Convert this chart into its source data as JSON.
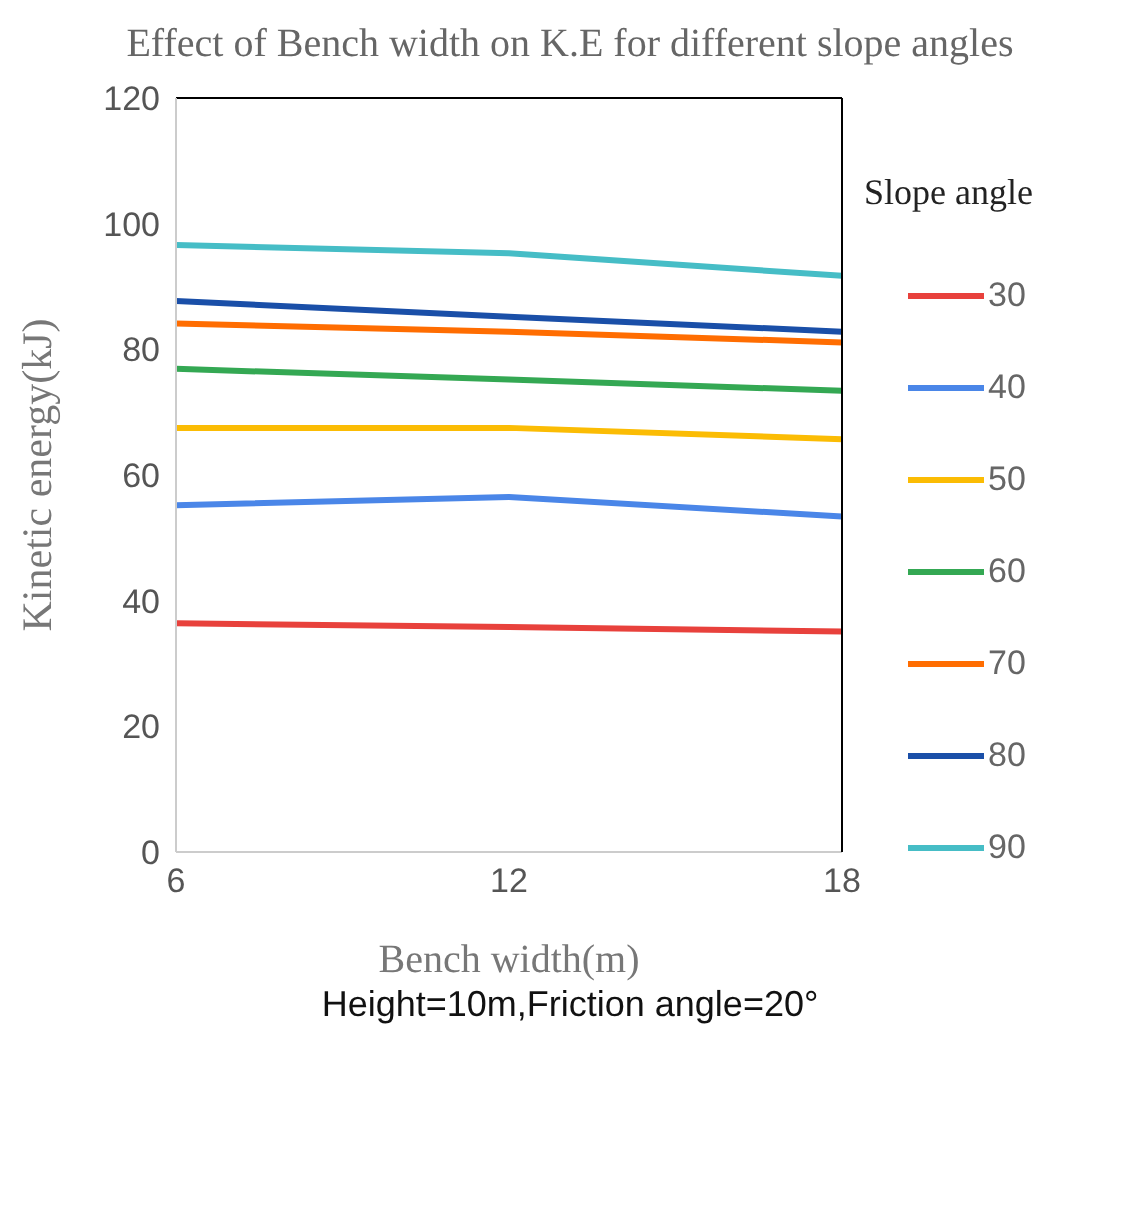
{
  "chart_data": {
    "type": "line",
    "title": "Effect of Bench width on K.E for different slope angles",
    "xlabel": "Bench width(m)",
    "ylabel": "Kinetic energy(kJ)",
    "legend_title": "Slope angle",
    "annotations": [
      "Height=10m,Friction angle=20°"
    ],
    "x": [
      6,
      12,
      18
    ],
    "xlim": [
      6,
      18
    ],
    "xticks": [
      6,
      12,
      18
    ],
    "ylim": [
      0,
      120
    ],
    "yticks": [
      0,
      20,
      40,
      60,
      80,
      100,
      120
    ],
    "grid": false,
    "legend": "right",
    "marker": "none",
    "line_style": "solid",
    "series": [
      {
        "name": "30",
        "color": "#e8413c",
        "values": [
          36.4,
          35.8,
          35.1
        ]
      },
      {
        "name": "40",
        "color": "#4a86e8",
        "values": [
          55.2,
          56.5,
          53.4
        ]
      },
      {
        "name": "50",
        "color": "#fbbc04",
        "values": [
          67.5,
          67.5,
          65.7
        ]
      },
      {
        "name": "60",
        "color": "#34a853",
        "values": [
          76.9,
          75.2,
          73.4
        ]
      },
      {
        "name": "70",
        "color": "#ff6d01",
        "values": [
          84.1,
          82.8,
          81.1
        ]
      },
      {
        "name": "80",
        "color": "#1a4fa8",
        "values": [
          87.7,
          85.2,
          82.8
        ]
      },
      {
        "name": "90",
        "color": "#46bdc6",
        "values": [
          96.6,
          95.3,
          91.7
        ]
      }
    ]
  }
}
